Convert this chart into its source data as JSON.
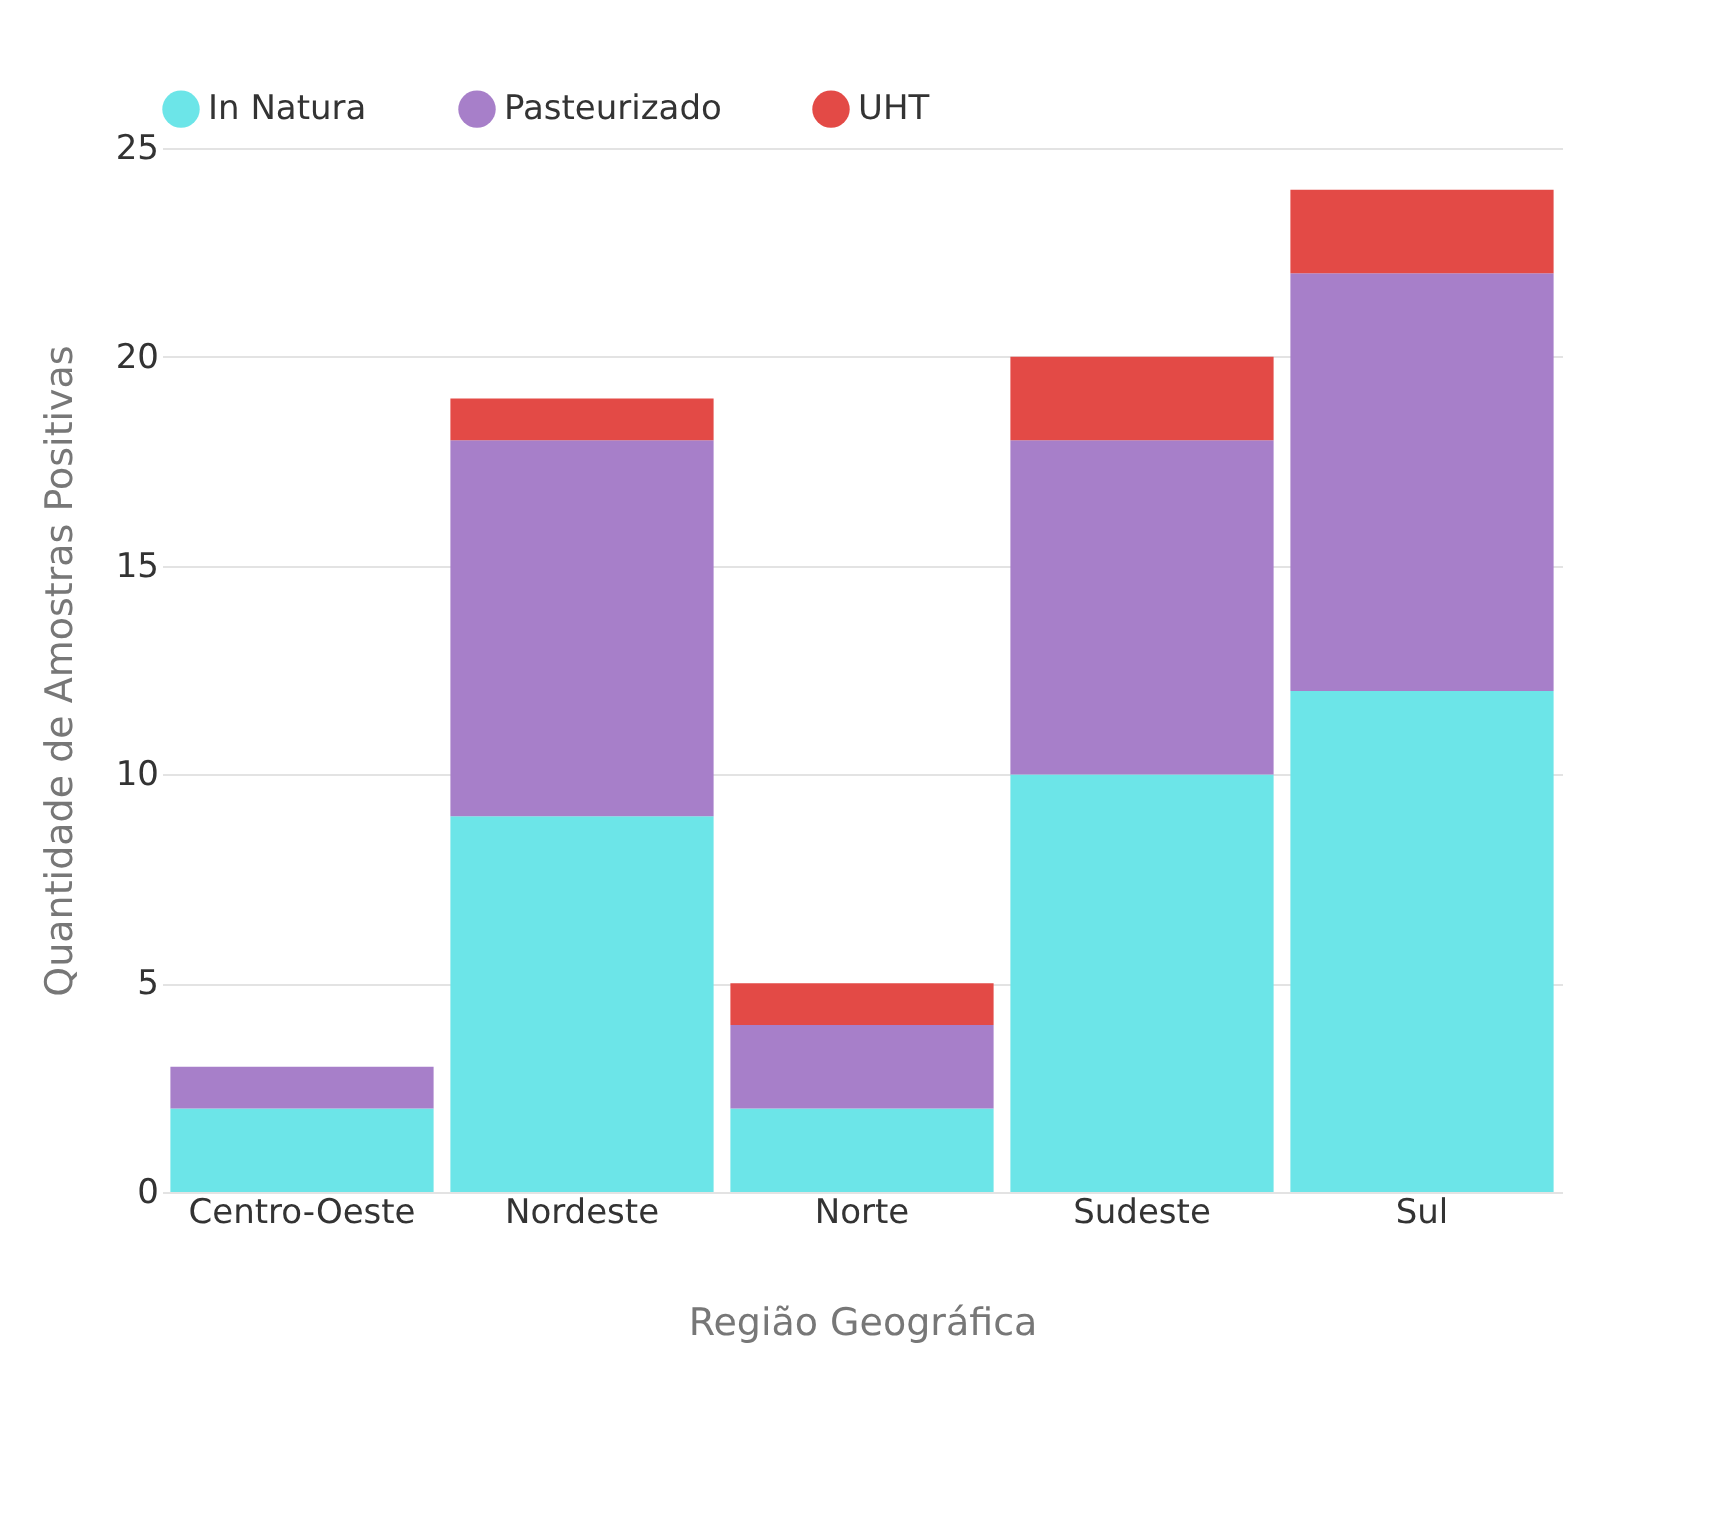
{
  "chart_data": {
    "type": "bar",
    "stacked": true,
    "xlabel": "Região Geográfica",
    "ylabel": "Quantidade de Amostras Positivas",
    "categories": [
      "Centro-Oeste",
      "Nordeste",
      "Norte",
      "Sudeste",
      "Sul"
    ],
    "series": [
      {
        "name": "In Natura",
        "color": "#6ce5e8",
        "values": [
          2,
          9,
          2,
          10,
          12
        ]
      },
      {
        "name": "Pasteurizado",
        "color": "#a77fc9",
        "values": [
          1,
          9,
          2,
          8,
          10
        ]
      },
      {
        "name": "UHT",
        "color": "#e34a46",
        "values": [
          0,
          1,
          1,
          2,
          2
        ]
      }
    ],
    "ylim": [
      0,
      25
    ],
    "yticks": [
      0,
      5,
      10,
      15,
      20,
      25
    ],
    "grid": "y",
    "legend": "top"
  }
}
